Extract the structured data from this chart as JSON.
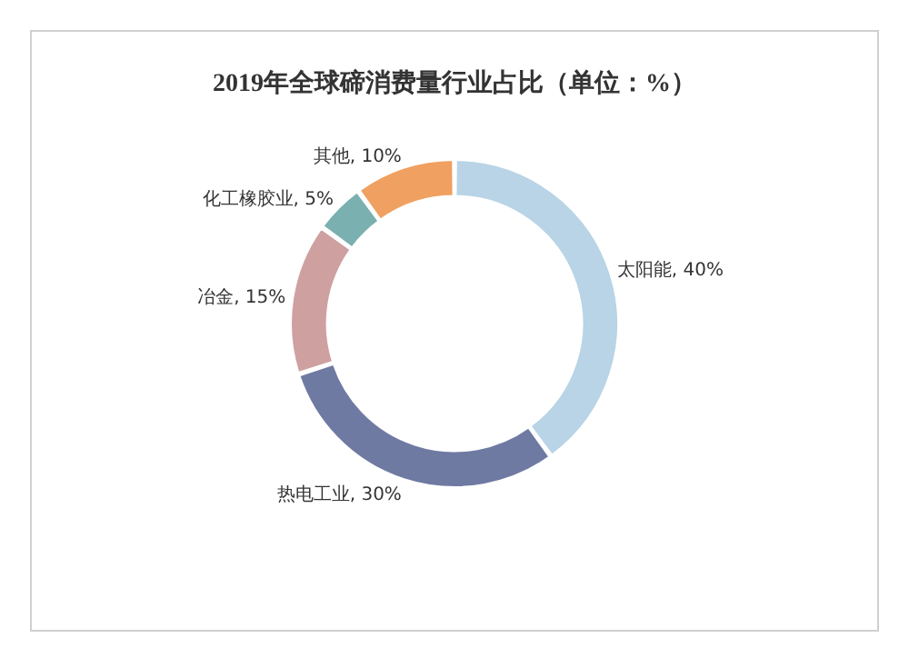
{
  "chart_data": {
    "type": "donut",
    "title": "2019年全球碲消费量行业占比（单位：%）",
    "categories": [
      "太阳能",
      "热电工业",
      "冶金",
      "化工橡胶业",
      "其他"
    ],
    "values": [
      40,
      30,
      15,
      5,
      10
    ],
    "colors": [
      "#b8d4e6",
      "#6f7aa3",
      "#cfa0a0",
      "#7ab0b0",
      "#f0a060"
    ],
    "value_labels": [
      ", 40%",
      ", 30%",
      ", 15%",
      ", 5%",
      ", 10%"
    ]
  }
}
